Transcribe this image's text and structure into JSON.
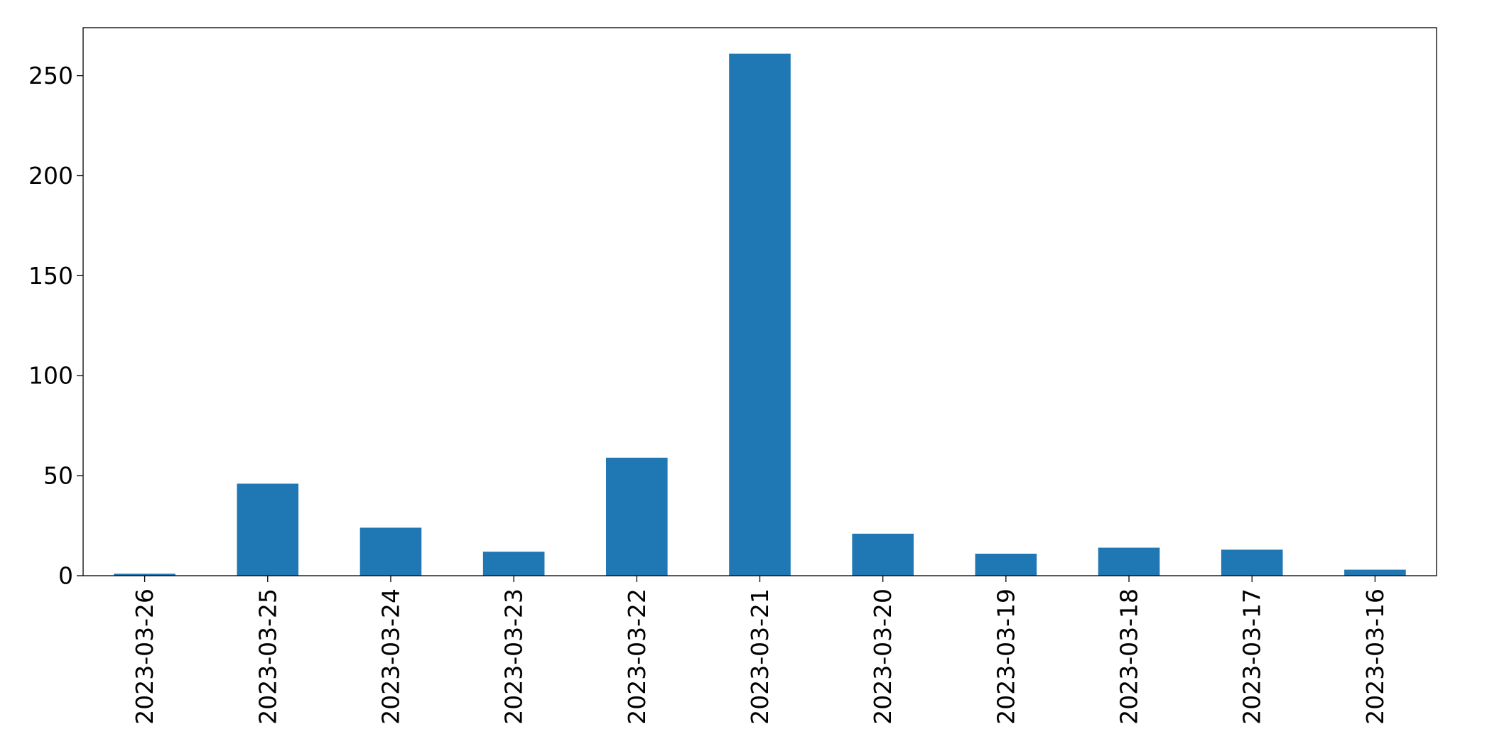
{
  "chart_data": {
    "type": "bar",
    "title": "",
    "xlabel": "",
    "ylabel": "",
    "categories": [
      "2023-03-26",
      "2023-03-25",
      "2023-03-24",
      "2023-03-23",
      "2023-03-22",
      "2023-03-21",
      "2023-03-20",
      "2023-03-19",
      "2023-03-18",
      "2023-03-17",
      "2023-03-16"
    ],
    "values": [
      1,
      46,
      24,
      12,
      59,
      261,
      21,
      11,
      14,
      13,
      3
    ],
    "ylim": [
      0,
      274
    ],
    "yticks": [
      0,
      50,
      100,
      150,
      200,
      250
    ],
    "grid": false,
    "legend": "none",
    "bar_color": "#1f77b4",
    "axis_color": "#000000",
    "background": "#ffffff"
  }
}
